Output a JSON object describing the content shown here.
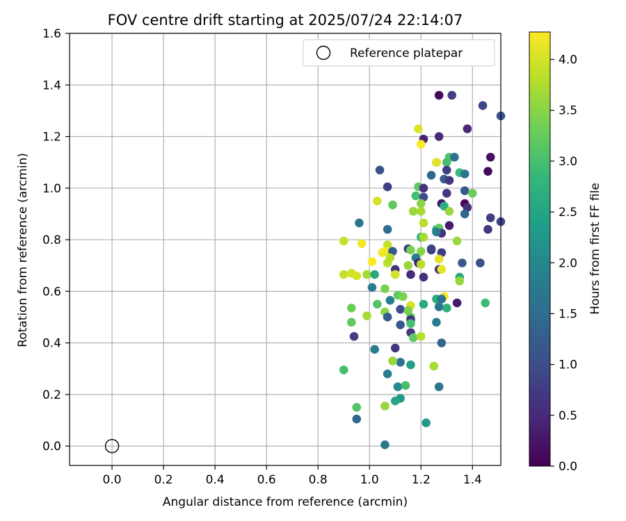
{
  "chart_data": {
    "type": "scatter",
    "title": "FOV centre drift starting at 2025/07/24 22:14:07",
    "xlabel": "Angular distance from reference (arcmin)",
    "ylabel": "Rotation from reference (arcmin)",
    "xlim": [
      -0.165,
      1.51
    ],
    "ylim": [
      -0.075,
      1.6
    ],
    "xticks": [
      0.0,
      0.2,
      0.4,
      0.6,
      0.8,
      1.0,
      1.2,
      1.4
    ],
    "yticks": [
      0.0,
      0.2,
      0.4,
      0.6,
      0.8,
      1.0,
      1.2,
      1.4,
      1.6
    ],
    "grid": true,
    "legend": {
      "position": "top-right",
      "entries": [
        "Reference platepar"
      ]
    },
    "reference_point": {
      "x": 0.0,
      "y": 0.0
    },
    "colorbar": {
      "label": "Hours from first FF file",
      "colormap": "viridis",
      "range": [
        0.0,
        4.27
      ],
      "ticks": [
        0.0,
        0.5,
        1.0,
        1.5,
        2.0,
        2.5,
        3.0,
        3.5,
        4.0
      ]
    },
    "points": [
      {
        "x": 1.27,
        "y": 1.36,
        "c": 0.1
      },
      {
        "x": 1.32,
        "y": 1.36,
        "c": 0.8
      },
      {
        "x": 1.44,
        "y": 1.32,
        "c": 0.9
      },
      {
        "x": 1.51,
        "y": 1.28,
        "c": 1.1
      },
      {
        "x": 1.38,
        "y": 1.23,
        "c": 0.5
      },
      {
        "x": 1.27,
        "y": 1.2,
        "c": 0.5
      },
      {
        "x": 1.21,
        "y": 1.19,
        "c": 0.4
      },
      {
        "x": 1.19,
        "y": 1.23,
        "c": 4.05
      },
      {
        "x": 1.2,
        "y": 1.17,
        "c": 4.25
      },
      {
        "x": 1.31,
        "y": 1.12,
        "c": 3.1
      },
      {
        "x": 1.33,
        "y": 1.12,
        "c": 1.6
      },
      {
        "x": 1.47,
        "y": 1.12,
        "c": 0.2
      },
      {
        "x": 1.26,
        "y": 1.1,
        "c": 1.3
      },
      {
        "x": 1.26,
        "y": 1.1,
        "c": 4.1
      },
      {
        "x": 1.3,
        "y": 1.1,
        "c": 3.0
      },
      {
        "x": 1.04,
        "y": 1.07,
        "c": 1.1
      },
      {
        "x": 1.3,
        "y": 1.07,
        "c": 0.8
      },
      {
        "x": 1.46,
        "y": 1.065,
        "c": 0.1
      },
      {
        "x": 1.35,
        "y": 1.06,
        "c": 2.9
      },
      {
        "x": 1.37,
        "y": 1.055,
        "c": 1.6
      },
      {
        "x": 1.24,
        "y": 1.05,
        "c": 1.4
      },
      {
        "x": 1.29,
        "y": 1.035,
        "c": 1.3
      },
      {
        "x": 1.31,
        "y": 1.03,
        "c": 0.7
      },
      {
        "x": 1.07,
        "y": 1.005,
        "c": 0.8
      },
      {
        "x": 1.19,
        "y": 1.005,
        "c": 3.2
      },
      {
        "x": 1.21,
        "y": 1.0,
        "c": 0.6
      },
      {
        "x": 1.37,
        "y": 0.99,
        "c": 1.2
      },
      {
        "x": 1.4,
        "y": 0.98,
        "c": 3.3
      },
      {
        "x": 1.3,
        "y": 0.98,
        "c": 0.7
      },
      {
        "x": 1.18,
        "y": 0.97,
        "c": 3.0
      },
      {
        "x": 1.21,
        "y": 0.965,
        "c": 1.0
      },
      {
        "x": 1.03,
        "y": 0.95,
        "c": 4.0
      },
      {
        "x": 1.2,
        "y": 0.94,
        "c": 3.5
      },
      {
        "x": 1.28,
        "y": 0.94,
        "c": 0.3
      },
      {
        "x": 1.37,
        "y": 0.94,
        "c": 0.1
      },
      {
        "x": 1.09,
        "y": 0.935,
        "c": 3.2
      },
      {
        "x": 1.29,
        "y": 0.93,
        "c": 2.7
      },
      {
        "x": 1.38,
        "y": 0.925,
        "c": 0.6
      },
      {
        "x": 1.17,
        "y": 0.91,
        "c": 3.6
      },
      {
        "x": 1.2,
        "y": 0.91,
        "c": 3.7
      },
      {
        "x": 1.31,
        "y": 0.91,
        "c": 3.6
      },
      {
        "x": 1.37,
        "y": 0.9,
        "c": 1.4
      },
      {
        "x": 1.47,
        "y": 0.885,
        "c": 0.8
      },
      {
        "x": 1.51,
        "y": 0.87,
        "c": 0.9
      },
      {
        "x": 0.96,
        "y": 0.865,
        "c": 1.7
      },
      {
        "x": 1.21,
        "y": 0.865,
        "c": 3.8
      },
      {
        "x": 1.31,
        "y": 0.855,
        "c": 0.3
      },
      {
        "x": 1.07,
        "y": 0.84,
        "c": 1.5
      },
      {
        "x": 1.26,
        "y": 0.84,
        "c": 2.8
      },
      {
        "x": 1.27,
        "y": 0.845,
        "c": 3.2
      },
      {
        "x": 1.46,
        "y": 0.84,
        "c": 0.7
      },
      {
        "x": 1.28,
        "y": 0.825,
        "c": 0.6
      },
      {
        "x": 1.26,
        "y": 0.83,
        "c": 1.8
      },
      {
        "x": 1.2,
        "y": 0.81,
        "c": 2.8
      },
      {
        "x": 1.21,
        "y": 0.81,
        "c": 3.7
      },
      {
        "x": 1.34,
        "y": 0.795,
        "c": 3.6
      },
      {
        "x": 0.9,
        "y": 0.795,
        "c": 3.9
      },
      {
        "x": 0.97,
        "y": 0.785,
        "c": 4.2
      },
      {
        "x": 1.07,
        "y": 0.78,
        "c": 3.9
      },
      {
        "x": 1.15,
        "y": 0.765,
        "c": 0.8
      },
      {
        "x": 1.16,
        "y": 0.76,
        "c": 3.4
      },
      {
        "x": 1.24,
        "y": 0.765,
        "c": 1.2
      },
      {
        "x": 1.24,
        "y": 0.76,
        "c": 0.8
      },
      {
        "x": 1.06,
        "y": 0.755,
        "c": 4.2
      },
      {
        "x": 1.09,
        "y": 0.755,
        "c": 1.2
      },
      {
        "x": 1.05,
        "y": 0.75,
        "c": 4.2
      },
      {
        "x": 1.2,
        "y": 0.755,
        "c": 3.5
      },
      {
        "x": 1.28,
        "y": 0.75,
        "c": 0.8
      },
      {
        "x": 1.18,
        "y": 0.73,
        "c": 1.8
      },
      {
        "x": 1.08,
        "y": 0.73,
        "c": 3.8
      },
      {
        "x": 1.27,
        "y": 0.725,
        "c": 4.1
      },
      {
        "x": 1.01,
        "y": 0.715,
        "c": 4.25
      },
      {
        "x": 1.07,
        "y": 0.71,
        "c": 3.8
      },
      {
        "x": 1.19,
        "y": 0.71,
        "c": 0.4
      },
      {
        "x": 1.2,
        "y": 0.705,
        "c": 3.8
      },
      {
        "x": 1.36,
        "y": 0.71,
        "c": 1.2
      },
      {
        "x": 1.43,
        "y": 0.71,
        "c": 1.0
      },
      {
        "x": 1.43,
        "y": 0.71,
        "c": 1.1
      },
      {
        "x": 1.15,
        "y": 0.7,
        "c": 3.6
      },
      {
        "x": 1.1,
        "y": 0.685,
        "c": 0.7
      },
      {
        "x": 1.27,
        "y": 0.685,
        "c": 0.6
      },
      {
        "x": 1.28,
        "y": 0.685,
        "c": 4.1
      },
      {
        "x": 0.9,
        "y": 0.665,
        "c": 3.9
      },
      {
        "x": 0.93,
        "y": 0.67,
        "c": 4.0
      },
      {
        "x": 0.95,
        "y": 0.66,
        "c": 4.0
      },
      {
        "x": 0.99,
        "y": 0.665,
        "c": 3.7
      },
      {
        "x": 1.02,
        "y": 0.665,
        "c": 2.6
      },
      {
        "x": 1.1,
        "y": 0.665,
        "c": 4.0
      },
      {
        "x": 1.16,
        "y": 0.665,
        "c": 0.5
      },
      {
        "x": 1.21,
        "y": 0.655,
        "c": 0.6
      },
      {
        "x": 1.35,
        "y": 0.655,
        "c": 2.6
      },
      {
        "x": 1.35,
        "y": 0.64,
        "c": 3.6
      },
      {
        "x": 1.01,
        "y": 0.615,
        "c": 1.8
      },
      {
        "x": 1.06,
        "y": 0.61,
        "c": 3.4
      },
      {
        "x": 1.29,
        "y": 0.58,
        "c": 4.25
      },
      {
        "x": 1.11,
        "y": 0.585,
        "c": 3.2
      },
      {
        "x": 1.13,
        "y": 0.58,
        "c": 3.4
      },
      {
        "x": 1.08,
        "y": 0.565,
        "c": 1.8
      },
      {
        "x": 1.26,
        "y": 0.57,
        "c": 2.6
      },
      {
        "x": 1.28,
        "y": 0.57,
        "c": 1.6
      },
      {
        "x": 1.34,
        "y": 0.555,
        "c": 0.3
      },
      {
        "x": 1.45,
        "y": 0.555,
        "c": 2.9
      },
      {
        "x": 1.03,
        "y": 0.55,
        "c": 3.1
      },
      {
        "x": 1.16,
        "y": 0.545,
        "c": 4.0
      },
      {
        "x": 1.21,
        "y": 0.55,
        "c": 2.6
      },
      {
        "x": 1.27,
        "y": 0.54,
        "c": 1.6
      },
      {
        "x": 1.3,
        "y": 0.535,
        "c": 2.7
      },
      {
        "x": 0.93,
        "y": 0.535,
        "c": 3.3
      },
      {
        "x": 1.12,
        "y": 0.53,
        "c": 1.0
      },
      {
        "x": 1.15,
        "y": 0.525,
        "c": 3.4
      },
      {
        "x": 1.06,
        "y": 0.52,
        "c": 3.5
      },
      {
        "x": 0.99,
        "y": 0.505,
        "c": 3.7
      },
      {
        "x": 1.07,
        "y": 0.5,
        "c": 1.2
      },
      {
        "x": 1.16,
        "y": 0.5,
        "c": 3.2
      },
      {
        "x": 1.16,
        "y": 0.49,
        "c": 0.6
      },
      {
        "x": 0.93,
        "y": 0.48,
        "c": 3.2
      },
      {
        "x": 1.16,
        "y": 0.475,
        "c": 3.0
      },
      {
        "x": 1.26,
        "y": 0.48,
        "c": 1.8
      },
      {
        "x": 1.12,
        "y": 0.47,
        "c": 1.2
      },
      {
        "x": 1.16,
        "y": 0.44,
        "c": 0.7
      },
      {
        "x": 1.17,
        "y": 0.42,
        "c": 3.2
      },
      {
        "x": 1.2,
        "y": 0.425,
        "c": 3.8
      },
      {
        "x": 0.94,
        "y": 0.425,
        "c": 0.8
      },
      {
        "x": 1.28,
        "y": 0.4,
        "c": 1.4
      },
      {
        "x": 1.1,
        "y": 0.38,
        "c": 0.7
      },
      {
        "x": 1.02,
        "y": 0.375,
        "c": 1.8
      },
      {
        "x": 1.12,
        "y": 0.325,
        "c": 1.6
      },
      {
        "x": 1.16,
        "y": 0.315,
        "c": 2.4
      },
      {
        "x": 1.09,
        "y": 0.33,
        "c": 3.6
      },
      {
        "x": 1.25,
        "y": 0.31,
        "c": 3.7
      },
      {
        "x": 0.9,
        "y": 0.295,
        "c": 3.0
      },
      {
        "x": 1.07,
        "y": 0.28,
        "c": 1.8
      },
      {
        "x": 1.11,
        "y": 0.23,
        "c": 2.0
      },
      {
        "x": 1.14,
        "y": 0.235,
        "c": 3.0
      },
      {
        "x": 1.27,
        "y": 0.23,
        "c": 1.7
      },
      {
        "x": 1.12,
        "y": 0.185,
        "c": 2.3
      },
      {
        "x": 1.1,
        "y": 0.175,
        "c": 2.5
      },
      {
        "x": 0.95,
        "y": 0.15,
        "c": 3.1
      },
      {
        "x": 1.06,
        "y": 0.155,
        "c": 3.6
      },
      {
        "x": 0.95,
        "y": 0.105,
        "c": 1.4
      },
      {
        "x": 1.22,
        "y": 0.09,
        "c": 2.3
      },
      {
        "x": 1.06,
        "y": 0.005,
        "c": 1.7
      }
    ]
  }
}
